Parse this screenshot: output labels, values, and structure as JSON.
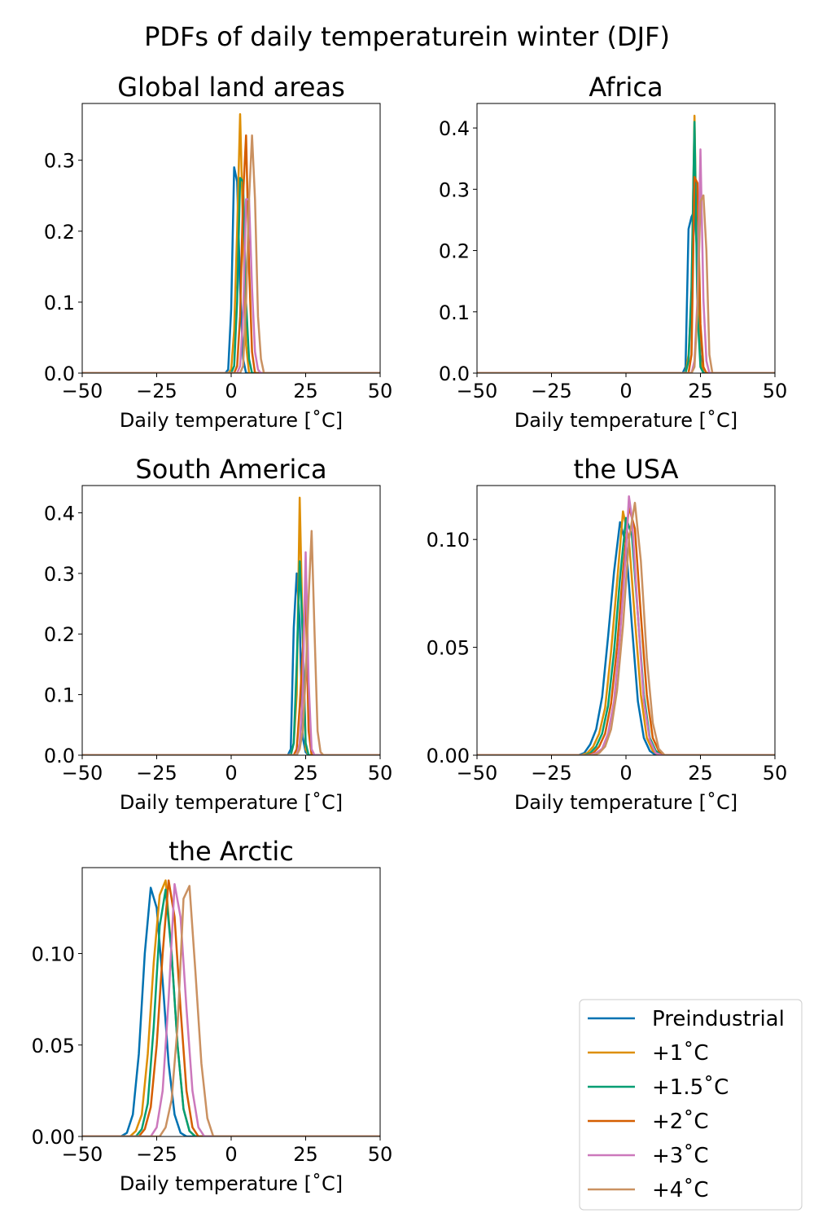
{
  "figure": {
    "suptitle": "PDFs of daily temperaturein winter (DJF)"
  },
  "series_styles": [
    {
      "name": "Preindustrial",
      "color": "#0072b2"
    },
    {
      "name": "+1˚C",
      "color": "#de8f05"
    },
    {
      "name": "+1.5˚C",
      "color": "#029e73"
    },
    {
      "name": "+2˚C",
      "color": "#d55e00"
    },
    {
      "name": "+3˚C",
      "color": "#cc78bc"
    },
    {
      "name": "+4˚C",
      "color": "#ca9161"
    }
  ],
  "legend": {
    "placement": "bottom-right",
    "entries": [
      "Preindustrial",
      "+1˚C",
      "+1.5˚C",
      "+2˚C",
      "+3˚C",
      "+4˚C"
    ]
  },
  "chart_data": [
    {
      "type": "line",
      "title": "Global land areas",
      "xlabel": "Daily temperature [˚C]",
      "ylabel": "",
      "xlim": [
        -50,
        50
      ],
      "ylim": [
        0,
        0.38
      ],
      "xticks": [
        "−50",
        "−25",
        "0",
        "25",
        "50"
      ],
      "yticks": [
        "0.0",
        "0.1",
        "0.2",
        "0.3"
      ],
      "xtick_values": [
        -50,
        -25,
        0,
        25,
        50
      ],
      "ytick_values": [
        0,
        0.1,
        0.2,
        0.3
      ],
      "grid": false,
      "series": [
        {
          "name": "Preindustrial",
          "x": [
            -50,
            -2,
            -1,
            0,
            1,
            2,
            3,
            4,
            5,
            50
          ],
          "y": [
            0,
            0,
            0.005,
            0.09,
            0.29,
            0.27,
            0.12,
            0.02,
            0,
            0
          ]
        },
        {
          "name": "+1˚C",
          "x": [
            -50,
            -1,
            0,
            1,
            2,
            3,
            4,
            5,
            6,
            50
          ],
          "y": [
            0,
            0,
            0.005,
            0.06,
            0.2,
            0.365,
            0.2,
            0.04,
            0,
            0
          ]
        },
        {
          "name": "+1.5˚C",
          "x": [
            -50,
            0,
            1,
            2,
            3,
            4,
            5,
            6,
            7,
            50
          ],
          "y": [
            0,
            0,
            0.01,
            0.1,
            0.275,
            0.27,
            0.1,
            0.02,
            0,
            0
          ]
        },
        {
          "name": "+2˚C",
          "x": [
            -50,
            1,
            2,
            3,
            4,
            5,
            6,
            7,
            8,
            50
          ],
          "y": [
            0,
            0,
            0.01,
            0.08,
            0.25,
            0.335,
            0.15,
            0.03,
            0,
            0
          ]
        },
        {
          "name": "+3˚C",
          "x": [
            -50,
            2,
            3,
            4,
            5,
            6,
            7,
            8,
            9,
            10,
            50
          ],
          "y": [
            0,
            0,
            0.01,
            0.08,
            0.245,
            0.245,
            0.12,
            0.03,
            0.005,
            0,
            0
          ]
        },
        {
          "name": "+4˚C",
          "x": [
            -50,
            3,
            4,
            5,
            6,
            7,
            8,
            9,
            10,
            11,
            50
          ],
          "y": [
            0,
            0,
            0.01,
            0.1,
            0.245,
            0.335,
            0.245,
            0.08,
            0.02,
            0,
            0
          ]
        }
      ]
    },
    {
      "type": "line",
      "title": "Africa",
      "xlabel": "Daily temperature [˚C]",
      "ylabel": "",
      "xlim": [
        -50,
        50
      ],
      "ylim": [
        0,
        0.44
      ],
      "xticks": [
        "−50",
        "−25",
        "0",
        "25",
        "50"
      ],
      "yticks": [
        "0.0",
        "0.1",
        "0.2",
        "0.3",
        "0.4"
      ],
      "xtick_values": [
        -50,
        -25,
        0,
        25,
        50
      ],
      "ytick_values": [
        0,
        0.1,
        0.2,
        0.3,
        0.4
      ],
      "grid": false,
      "series": [
        {
          "name": "Preindustrial",
          "x": [
            -50,
            19,
            20,
            21,
            22,
            23,
            24,
            25,
            26,
            50
          ],
          "y": [
            0,
            0,
            0.01,
            0.235,
            0.255,
            0.265,
            0.19,
            0.03,
            0,
            0
          ]
        },
        {
          "name": "+1˚C",
          "x": [
            -50,
            20,
            21,
            22,
            23,
            24,
            25,
            26,
            50
          ],
          "y": [
            0,
            0,
            0.03,
            0.12,
            0.42,
            0.12,
            0.02,
            0,
            0
          ]
        },
        {
          "name": "+1.5˚C",
          "x": [
            -50,
            20,
            21,
            22,
            23,
            24,
            25,
            26,
            50
          ],
          "y": [
            0,
            0,
            0.02,
            0.14,
            0.41,
            0.1,
            0.01,
            0,
            0
          ]
        },
        {
          "name": "+2˚C",
          "x": [
            -50,
            21,
            22,
            23,
            24,
            25,
            26,
            27,
            50
          ],
          "y": [
            0,
            0,
            0.03,
            0.32,
            0.31,
            0.08,
            0.01,
            0,
            0
          ]
        },
        {
          "name": "+3˚C",
          "x": [
            -50,
            22,
            23,
            24,
            25,
            26,
            27,
            28,
            50
          ],
          "y": [
            0,
            0,
            0.02,
            0.12,
            0.365,
            0.12,
            0.02,
            0,
            0
          ]
        },
        {
          "name": "+4˚C",
          "x": [
            -50,
            22,
            23,
            24,
            25,
            26,
            27,
            28,
            29,
            50
          ],
          "y": [
            0,
            0,
            0.01,
            0.1,
            0.28,
            0.29,
            0.2,
            0.03,
            0,
            0
          ]
        }
      ]
    },
    {
      "type": "line",
      "title": "South America",
      "xlabel": "Daily temperature [˚C]",
      "ylabel": "",
      "xlim": [
        -50,
        50
      ],
      "ylim": [
        0,
        0.445
      ],
      "xticks": [
        "−50",
        "−25",
        "0",
        "25",
        "50"
      ],
      "yticks": [
        "0.0",
        "0.1",
        "0.2",
        "0.3",
        "0.4"
      ],
      "xtick_values": [
        -50,
        -25,
        0,
        25,
        50
      ],
      "ytick_values": [
        0,
        0.1,
        0.2,
        0.3,
        0.4
      ],
      "grid": false,
      "series": [
        {
          "name": "Preindustrial",
          "x": [
            -50,
            19,
            20,
            21,
            22,
            23,
            24,
            25,
            26,
            50
          ],
          "y": [
            0,
            0,
            0.01,
            0.21,
            0.3,
            0.22,
            0.03,
            0.005,
            0,
            0
          ]
        },
        {
          "name": "+1˚C",
          "x": [
            -50,
            20,
            21,
            22,
            23,
            24,
            25,
            26,
            50
          ],
          "y": [
            0,
            0,
            0.02,
            0.1,
            0.425,
            0.2,
            0.01,
            0,
            0
          ]
        },
        {
          "name": "+1.5˚C",
          "x": [
            -50,
            20,
            21,
            22,
            23,
            24,
            25,
            26,
            50
          ],
          "y": [
            0,
            0,
            0.02,
            0.15,
            0.32,
            0.2,
            0.02,
            0,
            0
          ]
        },
        {
          "name": "+2˚C",
          "x": [
            -50,
            21,
            22,
            23,
            24,
            25,
            26,
            27,
            50
          ],
          "y": [
            0,
            0,
            0.01,
            0.08,
            0.17,
            0.27,
            0.04,
            0,
            0
          ]
        },
        {
          "name": "+3˚C",
          "x": [
            -50,
            22,
            23,
            24,
            25,
            26,
            27,
            28,
            50
          ],
          "y": [
            0,
            0,
            0.02,
            0.1,
            0.335,
            0.12,
            0.01,
            0,
            0
          ]
        },
        {
          "name": "+4˚C",
          "x": [
            -50,
            22,
            23,
            24,
            25,
            26,
            27,
            28,
            29,
            30,
            31,
            50
          ],
          "y": [
            0,
            0,
            0.01,
            0.04,
            0.13,
            0.26,
            0.37,
            0.2,
            0.04,
            0.005,
            0,
            0
          ]
        }
      ]
    },
    {
      "type": "line",
      "title": "the USA",
      "xlabel": "Daily temperature [˚C]",
      "ylabel": "",
      "xlim": [
        -50,
        50
      ],
      "ylim": [
        0,
        0.125
      ],
      "xticks": [
        "−50",
        "−25",
        "0",
        "25",
        "50"
      ],
      "yticks": [
        "0.00",
        "0.05",
        "0.10"
      ],
      "xtick_values": [
        -50,
        -25,
        0,
        25,
        50
      ],
      "ytick_values": [
        0,
        0.05,
        0.1
      ],
      "grid": false,
      "series": [
        {
          "name": "Preindustrial",
          "x": [
            -50,
            -16,
            -14,
            -12,
            -10,
            -8,
            -6,
            -4,
            -2,
            0,
            2,
            4,
            6,
            8,
            10,
            50
          ],
          "y": [
            0,
            0,
            0.001,
            0.005,
            0.012,
            0.027,
            0.055,
            0.085,
            0.108,
            0.098,
            0.06,
            0.025,
            0.008,
            0.002,
            0,
            0
          ]
        },
        {
          "name": "+1˚C",
          "x": [
            -50,
            -15,
            -13,
            -11,
            -9,
            -7,
            -5,
            -3,
            -1,
            1,
            3,
            5,
            7,
            9,
            11,
            50
          ],
          "y": [
            0,
            0,
            0.001,
            0.004,
            0.01,
            0.022,
            0.048,
            0.08,
            0.113,
            0.1,
            0.063,
            0.028,
            0.008,
            0.002,
            0,
            0
          ]
        },
        {
          "name": "+1.5˚C",
          "x": [
            -50,
            -14,
            -12,
            -10,
            -8,
            -6,
            -4,
            -2,
            0,
            2,
            4,
            6,
            8,
            10,
            12,
            50
          ],
          "y": [
            0,
            0,
            0.001,
            0.004,
            0.01,
            0.023,
            0.048,
            0.082,
            0.11,
            0.102,
            0.065,
            0.028,
            0.008,
            0.002,
            0,
            0
          ]
        },
        {
          "name": "+2˚C",
          "x": [
            -50,
            -13,
            -11,
            -9,
            -7,
            -5,
            -3,
            -1,
            1,
            3,
            5,
            7,
            9,
            11,
            13,
            50
          ],
          "y": [
            0,
            0,
            0.001,
            0.004,
            0.01,
            0.024,
            0.05,
            0.085,
            0.115,
            0.105,
            0.065,
            0.028,
            0.008,
            0.002,
            0,
            0
          ]
        },
        {
          "name": "+3˚C",
          "x": [
            -50,
            -12,
            -10,
            -8,
            -6,
            -4,
            -2,
            0,
            1,
            2,
            4,
            6,
            8,
            10,
            12,
            50
          ],
          "y": [
            0,
            0,
            0.001,
            0.003,
            0.01,
            0.025,
            0.055,
            0.095,
            0.12,
            0.11,
            0.065,
            0.025,
            0.007,
            0.001,
            0,
            0
          ]
        },
        {
          "name": "+4˚C",
          "x": [
            -50,
            -11,
            -9,
            -7,
            -5,
            -3,
            -1,
            1,
            3,
            5,
            7,
            9,
            11,
            13,
            50
          ],
          "y": [
            0,
            0,
            0.001,
            0.004,
            0.012,
            0.03,
            0.06,
            0.1,
            0.117,
            0.09,
            0.045,
            0.015,
            0.003,
            0,
            0
          ]
        }
      ]
    },
    {
      "type": "line",
      "title": "the Arctic",
      "xlabel": "Daily temperature [˚C]",
      "ylabel": "",
      "xlim": [
        -50,
        50
      ],
      "ylim": [
        0,
        0.147
      ],
      "xticks": [
        "−50",
        "−25",
        "0",
        "25",
        "50"
      ],
      "yticks": [
        "0.00",
        "0.05",
        "0.10"
      ],
      "xtick_values": [
        -50,
        -25,
        0,
        25,
        50
      ],
      "ytick_values": [
        0,
        0.05,
        0.1
      ],
      "grid": false,
      "series": [
        {
          "name": "Preindustrial",
          "x": [
            -50,
            -37,
            -35,
            -33,
            -31,
            -29,
            -27,
            -25,
            -23,
            -21,
            -19,
            -17,
            -15,
            50
          ],
          "y": [
            0,
            0,
            0.002,
            0.012,
            0.045,
            0.1,
            0.136,
            0.125,
            0.085,
            0.04,
            0.012,
            0.002,
            0,
            0
          ]
        },
        {
          "name": "+1˚C",
          "x": [
            -50,
            -34,
            -32,
            -30,
            -28,
            -26,
            -24,
            -22,
            -20,
            -18,
            -16,
            -14,
            -12,
            50
          ],
          "y": [
            0,
            0,
            0.003,
            0.012,
            0.045,
            0.095,
            0.132,
            0.14,
            0.1,
            0.05,
            0.015,
            0.003,
            0,
            0
          ]
        },
        {
          "name": "+1.5˚C",
          "x": [
            -50,
            -32,
            -30,
            -28,
            -26,
            -24,
            -22,
            -20,
            -18,
            -16,
            -14,
            -12,
            50
          ],
          "y": [
            0,
            0,
            0.004,
            0.018,
            0.06,
            0.115,
            0.135,
            0.1,
            0.05,
            0.015,
            0.003,
            0,
            0
          ]
        },
        {
          "name": "+2˚C",
          "x": [
            -50,
            -31,
            -29,
            -27,
            -25,
            -23,
            -21,
            -19,
            -17,
            -15,
            -13,
            -11,
            50
          ],
          "y": [
            0,
            0,
            0.004,
            0.016,
            0.05,
            0.1,
            0.14,
            0.12,
            0.07,
            0.025,
            0.005,
            0,
            0
          ]
        },
        {
          "name": "+3˚C",
          "x": [
            -50,
            -27,
            -25,
            -23,
            -21,
            -19,
            -17,
            -15,
            -13,
            -11,
            -9,
            50
          ],
          "y": [
            0,
            0,
            0.005,
            0.025,
            0.075,
            0.138,
            0.12,
            0.07,
            0.025,
            0.005,
            0,
            0
          ]
        },
        {
          "name": "+4˚C",
          "x": [
            -50,
            -24,
            -22,
            -20,
            -18,
            -16,
            -14,
            -12,
            -10,
            -8,
            -6,
            50
          ],
          "y": [
            0,
            0,
            0.005,
            0.02,
            0.06,
            0.13,
            0.137,
            0.09,
            0.04,
            0.01,
            0,
            0
          ]
        }
      ]
    }
  ]
}
